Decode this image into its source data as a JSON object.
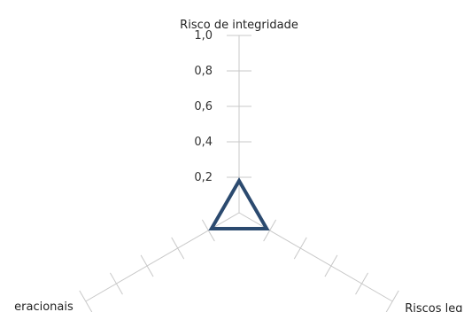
{
  "chart_data": {
    "type": "radar",
    "categories": [
      "Risco de integridade",
      "Riscos leg",
      "eracionais"
    ],
    "series": [
      {
        "values": [
          0.18,
          0.18,
          0.18
        ]
      }
    ],
    "rlim": [
      0,
      1.0
    ],
    "tick_labels": [
      "0,2",
      "0,4",
      "0,6",
      "0,8",
      "1,0"
    ],
    "tick_values": [
      0.2,
      0.4,
      0.6,
      0.8,
      1.0
    ],
    "grid": false,
    "legend": "none",
    "colors": {
      "series": "#2b4a6f",
      "axis": "#c8c8c8",
      "text": "#333333"
    }
  }
}
